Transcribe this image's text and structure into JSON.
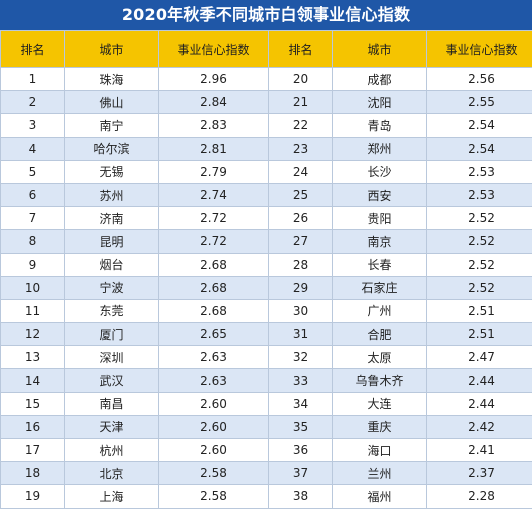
{
  "title": "2020年秋季不同城市白领事业信心指数",
  "headers": {
    "rank": "排名",
    "city": "城市",
    "index": "事业信心指数"
  },
  "rows": [
    {
      "l_rank": "1",
      "l_city": "珠海",
      "l_index": "2.96",
      "r_rank": "20",
      "r_city": "成都",
      "r_index": "2.56"
    },
    {
      "l_rank": "2",
      "l_city": "佛山",
      "l_index": "2.84",
      "r_rank": "21",
      "r_city": "沈阳",
      "r_index": "2.55"
    },
    {
      "l_rank": "3",
      "l_city": "南宁",
      "l_index": "2.83",
      "r_rank": "22",
      "r_city": "青岛",
      "r_index": "2.54"
    },
    {
      "l_rank": "4",
      "l_city": "哈尔滨",
      "l_index": "2.81",
      "r_rank": "23",
      "r_city": "郑州",
      "r_index": "2.54"
    },
    {
      "l_rank": "5",
      "l_city": "无锡",
      "l_index": "2.79",
      "r_rank": "24",
      "r_city": "长沙",
      "r_index": "2.53"
    },
    {
      "l_rank": "6",
      "l_city": "苏州",
      "l_index": "2.74",
      "r_rank": "25",
      "r_city": "西安",
      "r_index": "2.53"
    },
    {
      "l_rank": "7",
      "l_city": "济南",
      "l_index": "2.72",
      "r_rank": "26",
      "r_city": "贵阳",
      "r_index": "2.52"
    },
    {
      "l_rank": "8",
      "l_city": "昆明",
      "l_index": "2.72",
      "r_rank": "27",
      "r_city": "南京",
      "r_index": "2.52"
    },
    {
      "l_rank": "9",
      "l_city": "烟台",
      "l_index": "2.68",
      "r_rank": "28",
      "r_city": "长春",
      "r_index": "2.52"
    },
    {
      "l_rank": "10",
      "l_city": "宁波",
      "l_index": "2.68",
      "r_rank": "29",
      "r_city": "石家庄",
      "r_index": "2.52"
    },
    {
      "l_rank": "11",
      "l_city": "东莞",
      "l_index": "2.68",
      "r_rank": "30",
      "r_city": "广州",
      "r_index": "2.51"
    },
    {
      "l_rank": "12",
      "l_city": "厦门",
      "l_index": "2.65",
      "r_rank": "31",
      "r_city": "合肥",
      "r_index": "2.51"
    },
    {
      "l_rank": "13",
      "l_city": "深圳",
      "l_index": "2.63",
      "r_rank": "32",
      "r_city": "太原",
      "r_index": "2.47"
    },
    {
      "l_rank": "14",
      "l_city": "武汉",
      "l_index": "2.63",
      "r_rank": "33",
      "r_city": "乌鲁木齐",
      "r_index": "2.44"
    },
    {
      "l_rank": "15",
      "l_city": "南昌",
      "l_index": "2.60",
      "r_rank": "34",
      "r_city": "大连",
      "r_index": "2.44"
    },
    {
      "l_rank": "16",
      "l_city": "天津",
      "l_index": "2.60",
      "r_rank": "35",
      "r_city": "重庆",
      "r_index": "2.42"
    },
    {
      "l_rank": "17",
      "l_city": "杭州",
      "l_index": "2.60",
      "r_rank": "36",
      "r_city": "海口",
      "r_index": "2.41"
    },
    {
      "l_rank": "18",
      "l_city": "北京",
      "l_index": "2.58",
      "r_rank": "37",
      "r_city": "兰州",
      "r_index": "2.37"
    },
    {
      "l_rank": "19",
      "l_city": "上海",
      "l_index": "2.58",
      "r_rank": "38",
      "r_city": "福州",
      "r_index": "2.28"
    }
  ]
}
